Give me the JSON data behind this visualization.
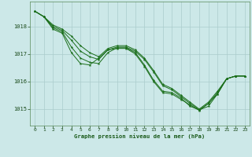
{
  "title": "Graphe pression niveau de la mer (hPa)",
  "bg_color": "#cce8e8",
  "grid_color": "#aacccc",
  "line_color": "#1a6e1a",
  "marker_color": "#1a6e1a",
  "xlim": [
    -0.5,
    23.5
  ],
  "ylim": [
    1014.4,
    1018.9
  ],
  "xticks": [
    0,
    1,
    2,
    3,
    4,
    5,
    6,
    7,
    8,
    9,
    10,
    11,
    12,
    13,
    14,
    15,
    16,
    17,
    18,
    19,
    20,
    21,
    22,
    23
  ],
  "yticks": [
    1015,
    1016,
    1017,
    1018
  ],
  "series": [
    [
      1018.55,
      1018.35,
      1017.9,
      1017.75,
      1017.05,
      1016.65,
      1016.6,
      1016.85,
      1017.15,
      1017.2,
      1017.2,
      1017.0,
      1016.55,
      1016.0,
      1015.6,
      1015.55,
      1015.35,
      1015.15,
      1014.95,
      1015.2,
      1015.55,
      1016.1,
      1016.2,
      1016.2
    ],
    [
      1018.55,
      1018.35,
      1018.0,
      1017.85,
      1017.5,
      1017.1,
      1016.9,
      1016.8,
      1017.15,
      1017.25,
      1017.25,
      1017.1,
      1016.8,
      1016.35,
      1015.85,
      1015.7,
      1015.45,
      1015.2,
      1014.97,
      1015.2,
      1015.6,
      1016.1,
      1016.2,
      1016.2
    ],
    [
      1018.55,
      1018.35,
      1018.05,
      1017.9,
      1017.65,
      1017.3,
      1017.05,
      1016.9,
      1017.2,
      1017.3,
      1017.3,
      1017.15,
      1016.85,
      1016.4,
      1015.9,
      1015.75,
      1015.5,
      1015.25,
      1015.0,
      1015.25,
      1015.65,
      1016.1,
      1016.2,
      1016.2
    ],
    [
      1018.55,
      1018.35,
      1017.95,
      1017.8,
      1017.25,
      1016.85,
      1016.7,
      1016.65,
      1017.05,
      1017.22,
      1017.22,
      1017.05,
      1016.6,
      1016.05,
      1015.65,
      1015.6,
      1015.4,
      1015.1,
      1014.97,
      1015.1,
      1015.55,
      1016.1,
      1016.2,
      1016.2
    ]
  ]
}
